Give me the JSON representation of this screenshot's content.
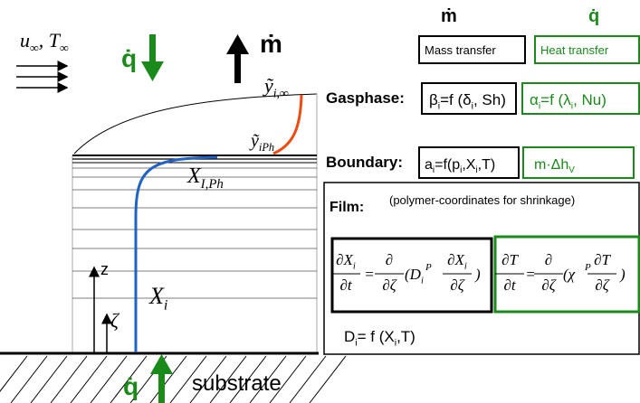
{
  "diagram": {
    "flow": [
      "u",
      "∞",
      ", T",
      "∞"
    ],
    "heat_flux_top": "q̇",
    "mass_flux": "ṁ",
    "y_inf": [
      "ỹ",
      "i,∞"
    ],
    "y_iph": [
      "ỹ",
      "iPh"
    ],
    "x_iph": [
      "X",
      "I,Ph"
    ],
    "x_i": [
      "X",
      "i"
    ],
    "z": "z",
    "zeta": "ζ",
    "heat_flux_bottom": "q̇",
    "substrate": "substrate"
  },
  "table": {
    "headers": [
      "ṁ",
      "q̇"
    ],
    "transfer": [
      "Mass transfer",
      "Heat transfer"
    ],
    "gasphase": {
      "label": "Gasphase:",
      "mass": [
        "β",
        "i",
        "=f (δ",
        "i",
        ", Sh)"
      ],
      "heat": [
        "α",
        "i",
        "=f (λ",
        "i",
        ", Nu)"
      ]
    },
    "boundary": {
      "label": "Boundary:",
      "mass": [
        "a",
        "i",
        "=f(p",
        "i",
        ",X",
        "i",
        ",T)"
      ],
      "heat": [
        "m·Δh",
        "V"
      ]
    },
    "film": {
      "label": "Film:",
      "note": "(polymer-coordinates for shrinkage)",
      "mass_equation": {
        "lhs_num": [
          "∂X",
          "i"
        ],
        "lhs_den": [
          "∂t"
        ],
        "equals": "=",
        "d_num": [
          "∂"
        ],
        "d_den": [
          "∂ζ"
        ],
        "coef": [
          "(D",
          "i"
        ],
        "sup": "P",
        "r_num": [
          "∂X",
          "i"
        ],
        "r_den": [
          "∂ζ"
        ],
        "close": ")"
      },
      "heat_equation": {
        "lhs_num": [
          "∂T"
        ],
        "lhs_den": [
          "∂t"
        ],
        "equals": "=",
        "d_num": [
          "∂"
        ],
        "d_den": [
          "∂ζ"
        ],
        "coef": [
          "(χ"
        ],
        "sup": "P",
        "r_num": [
          "∂T"
        ],
        "r_den": [
          "∂ζ"
        ],
        "close": ")"
      },
      "diffusion": [
        "D",
        "i",
        "= f (X",
        "i",
        ",T)"
      ]
    }
  }
}
